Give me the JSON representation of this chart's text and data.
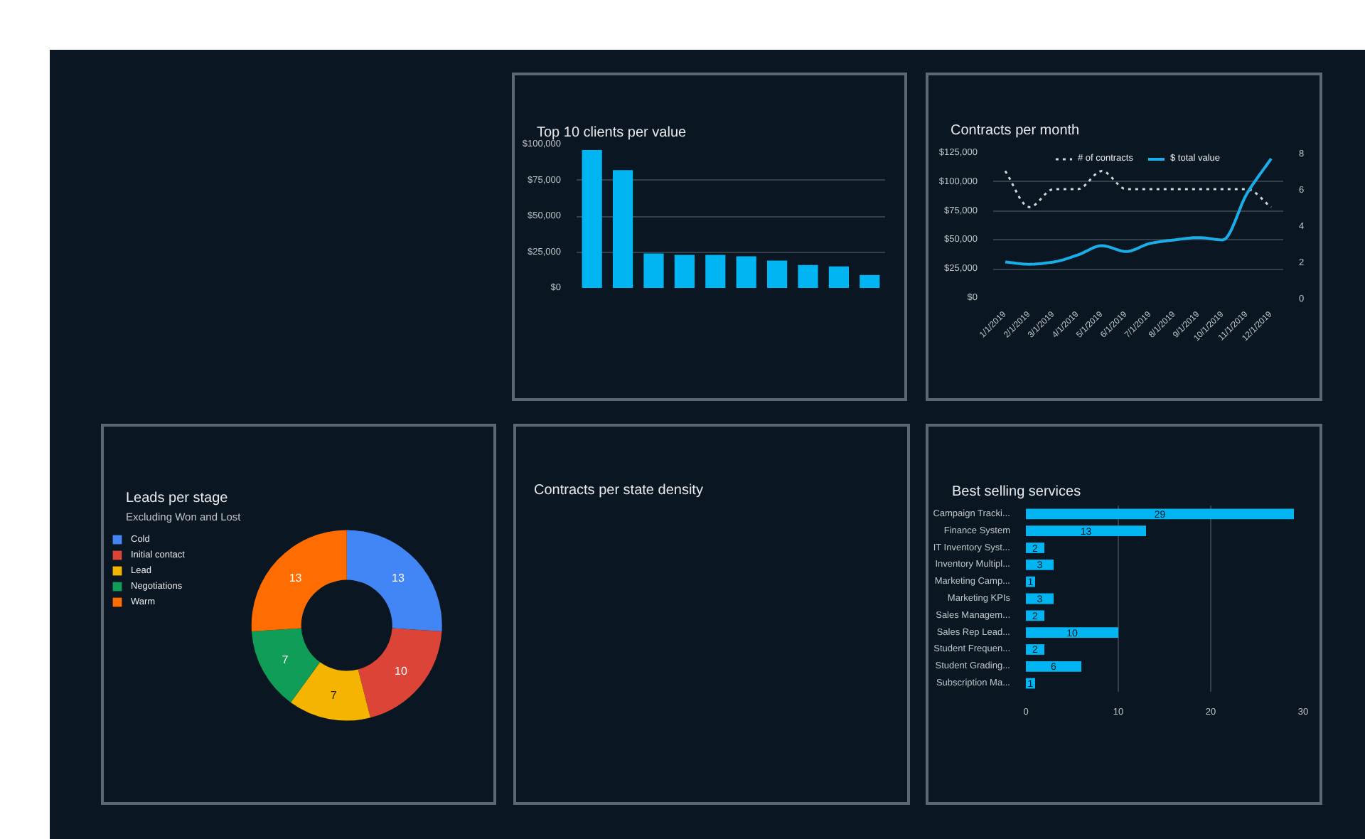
{
  "chart_data": [
    {
      "type": "bar",
      "title": "Top 10 clients per value",
      "categories": [
        null,
        null,
        null,
        null,
        null,
        null,
        null,
        null,
        null,
        null
      ],
      "values": [
        96000,
        82000,
        24000,
        23000,
        23000,
        22000,
        19000,
        16000,
        15000,
        9000
      ],
      "color": "#00b5f1",
      "ylim": [
        0,
        100000
      ],
      "yticks": [
        {
          "value": 0,
          "label": "$0"
        },
        {
          "value": 25000,
          "label": "$25,000"
        },
        {
          "value": 50000,
          "label": "$50,000"
        },
        {
          "value": 75000,
          "label": "$75,000"
        },
        {
          "value": 100000,
          "label": "$100,000"
        }
      ],
      "grid": "y"
    },
    {
      "type": "line",
      "title": "Contracts per month",
      "categories": [
        "1/1/2019",
        "2/1/2019",
        "3/1/2019",
        "4/1/2019",
        "5/1/2019",
        "6/1/2019",
        "7/1/2019",
        "8/1/2019",
        "9/1/2019",
        "10/1/2019",
        "11/1/2019",
        "12/1/2019"
      ],
      "series": [
        {
          "name": "# of contracts",
          "color": "#d0d4d8",
          "axis": "y2",
          "line_style": "dotted",
          "values": [
            7,
            5,
            6,
            6,
            7,
            6,
            6,
            6,
            6,
            6,
            6,
            5
          ]
        },
        {
          "name": "$ total value",
          "color": "#1aaee8",
          "values": [
            31000,
            29000,
            31000,
            37000,
            45000,
            40000,
            47000,
            50000,
            52000,
            50000,
            90000,
            120000
          ]
        }
      ],
      "ylim": [
        0,
        125000
      ],
      "yticks": [
        {
          "value": 0,
          "label": "$0"
        },
        {
          "value": 25000,
          "label": "$25,000"
        },
        {
          "value": 50000,
          "label": "$50,000"
        },
        {
          "value": 75000,
          "label": "$75,000"
        },
        {
          "value": 100000,
          "label": "$100,000"
        },
        {
          "value": 125000,
          "label": "$125,000"
        }
      ],
      "y2lim": [
        0,
        8
      ],
      "y2ticks": [
        0,
        2,
        4,
        6,
        8
      ],
      "grid": "y",
      "legend": "top"
    },
    {
      "type": "donut",
      "title": "Leads per stage",
      "subtitle": "Excluding Won and Lost",
      "categories": [
        "Cold",
        "Initial contact",
        "Lead",
        "Negotiations",
        "Warm"
      ],
      "values": [
        13,
        10,
        7,
        7,
        13
      ],
      "colors": [
        "#4285f4",
        "#db4437",
        "#f4b400",
        "#0f9d58",
        "#ff6d01"
      ],
      "data_labels": true,
      "legend": "top left"
    },
    {
      "type": "other",
      "title": "Contracts per state density"
    },
    {
      "type": "bar",
      "orientation": "horizontal",
      "title": "Best selling services",
      "categories": [
        "Campaign Tracki...",
        "Finance System",
        "IT Inventory Syst...",
        "Inventory Multipl...",
        "Marketing Camp...",
        "Marketing KPIs",
        "Sales Managem...",
        "Sales Rep Lead...",
        "Student Frequen...",
        "Student Grading...",
        "Subscription Ma..."
      ],
      "values": [
        29,
        13,
        2,
        3,
        1,
        3,
        2,
        10,
        2,
        6,
        1
      ],
      "color": "#00b5f1",
      "xlim": [
        0,
        30
      ],
      "xticks": [
        0,
        10,
        20,
        30
      ],
      "grid": "x",
      "data_labels": true
    }
  ]
}
